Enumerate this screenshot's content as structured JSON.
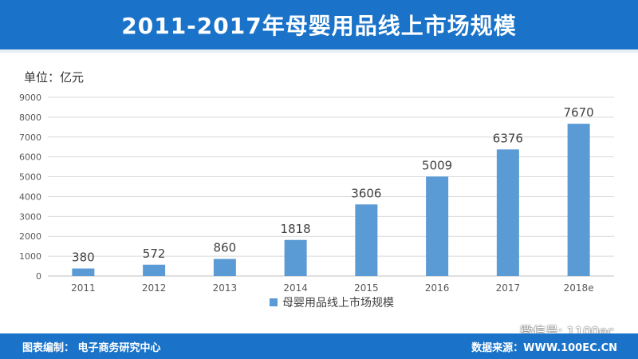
{
  "header": {
    "title": "2011-2017年母婴用品线上市场规模"
  },
  "unit_label": "单位：亿元",
  "footer": {
    "left": "图表编制：  电子商务研究中心",
    "right": "数据来源：WWW.100EC.CN"
  },
  "wechat": {
    "text": "微信号:  1100ec",
    "icon": "wechat-icon"
  },
  "colors": {
    "bar": "#5b9bd5",
    "header": "#1a73c8",
    "grid": "#d9d9d9"
  },
  "chart_data": {
    "type": "bar",
    "title": "2011-2017年母婴用品线上市场规模",
    "categories": [
      "2011",
      "2012",
      "2013",
      "2014",
      "2015",
      "2016",
      "2017",
      "2018e"
    ],
    "series": [
      {
        "name": "母婴用品线上市场规模",
        "values": [
          380,
          572,
          860,
          1818,
          3606,
          5009,
          6376,
          7670
        ]
      }
    ],
    "ylabel": "单位：亿元",
    "ylim": [
      0,
      9000
    ],
    "yticks": [
      0,
      1000,
      2000,
      3000,
      4000,
      5000,
      6000,
      7000,
      8000,
      9000
    ],
    "grid": true,
    "legend": "bottom",
    "data_labels": true
  }
}
